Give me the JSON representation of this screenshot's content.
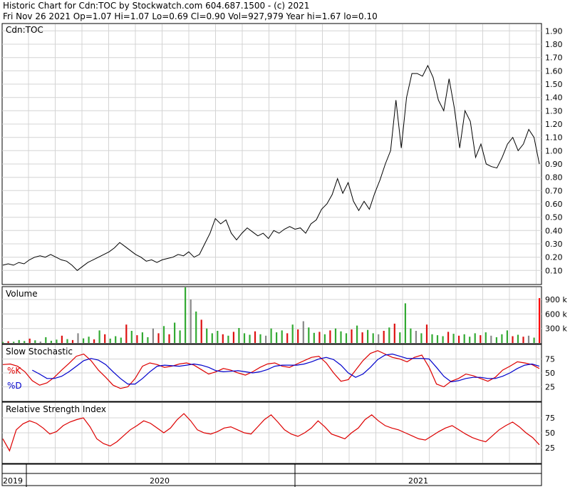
{
  "header": {
    "line1": "Historic Chart for Cdn:TOC by Stockwatch.com 604.687.1500 - (c) 2021",
    "line2": "Fri Nov 26 2021   Op=1.07  Hi=1.07  Lo=0.69  Cl=0.90  Vol=927,979  Year hi=1.67  lo=0.10"
  },
  "chart_data": [
    {
      "type": "line",
      "title": "Cdn:TOC",
      "ylim": [
        0.0,
        1.95
      ],
      "yticks": [
        "1.90",
        "1.80",
        "1.70",
        "1.60",
        "1.50",
        "1.40",
        "1.30",
        "1.20",
        "1.10",
        "1.00",
        "0.90",
        "0.80",
        "0.70",
        "0.60",
        "0.50",
        "0.40",
        "0.30",
        "0.20",
        "0.10"
      ],
      "x_labels": [
        "2019",
        "2020",
        "2021"
      ],
      "series": [
        {
          "values": [
            0.14,
            0.15,
            0.14,
            0.16,
            0.15,
            0.18,
            0.2,
            0.21,
            0.2,
            0.22,
            0.2,
            0.18,
            0.17,
            0.14,
            0.1,
            0.13,
            0.16,
            0.18,
            0.2,
            0.22,
            0.24,
            0.27,
            0.31,
            0.28,
            0.25,
            0.22,
            0.2,
            0.17,
            0.18,
            0.16,
            0.18,
            0.19,
            0.2,
            0.22,
            0.21,
            0.24,
            0.2,
            0.22,
            0.3,
            0.38,
            0.49,
            0.45,
            0.48,
            0.38,
            0.33,
            0.38,
            0.42,
            0.39,
            0.36,
            0.38,
            0.34,
            0.4,
            0.38,
            0.41,
            0.43,
            0.41,
            0.42,
            0.38,
            0.45,
            0.48,
            0.56,
            0.6,
            0.67,
            0.79,
            0.68,
            0.76,
            0.62,
            0.55,
            0.62,
            0.56,
            0.68,
            0.78,
            0.9,
            1.0,
            1.38,
            1.02,
            1.4,
            1.58,
            1.58,
            1.56,
            1.64,
            1.55,
            1.38,
            1.3,
            1.54,
            1.32,
            1.02,
            1.3,
            1.22,
            0.95,
            1.05,
            0.9,
            0.88,
            0.87,
            0.95,
            1.05,
            1.1,
            1.0,
            1.05,
            1.16,
            1.1,
            0.9
          ]
        }
      ]
    },
    {
      "type": "bar",
      "title": "Volume",
      "yticks": [
        "900 k",
        "600 k",
        "300 k"
      ],
      "ylim": [
        0,
        1150000
      ],
      "values": [
        20000,
        35000,
        25000,
        60000,
        40000,
        90000,
        55000,
        30000,
        120000,
        45000,
        70000,
        150000,
        80000,
        60000,
        200000,
        95000,
        130000,
        75000,
        260000,
        180000,
        90000,
        140000,
        110000,
        380000,
        250000,
        160000,
        220000,
        120000,
        300000,
        200000,
        350000,
        180000,
        420000,
        260000,
        1150000,
        900000,
        650000,
        480000,
        300000,
        200000,
        250000,
        180000,
        150000,
        230000,
        310000,
        200000,
        170000,
        240000,
        180000,
        150000,
        300000,
        220000,
        260000,
        200000,
        380000,
        280000,
        450000,
        320000,
        210000,
        230000,
        180000,
        260000,
        300000,
        240000,
        200000,
        280000,
        360000,
        220000,
        270000,
        200000,
        180000,
        250000,
        320000,
        400000,
        220000,
        820000,
        300000,
        250000,
        200000,
        380000,
        180000,
        160000,
        140000,
        230000,
        190000,
        150000,
        180000,
        130000,
        200000,
        160000,
        220000,
        150000,
        120000,
        180000,
        260000,
        140000,
        170000,
        130000,
        150000,
        110000,
        927979
      ],
      "colors": {
        "up": "#33aa33",
        "down": "#dd1111",
        "neutral": "#888888",
        "last": "#ff0000"
      }
    },
    {
      "type": "line",
      "title": "Slow Stochastic",
      "yticks": [
        "75",
        "50",
        "25"
      ],
      "ylim": [
        0,
        100
      ],
      "series": [
        {
          "name": "%K",
          "color": "#dd0000",
          "values": [
            65,
            66,
            62,
            52,
            36,
            28,
            32,
            42,
            55,
            67,
            80,
            84,
            72,
            55,
            42,
            28,
            22,
            25,
            40,
            62,
            68,
            65,
            60,
            62,
            66,
            68,
            64,
            56,
            48,
            52,
            58,
            55,
            50,
            46,
            52,
            60,
            66,
            68,
            62,
            60,
            66,
            72,
            78,
            80,
            68,
            50,
            35,
            38,
            55,
            72,
            85,
            90,
            84,
            78,
            75,
            70,
            78,
            82,
            60,
            30,
            25,
            35,
            40,
            48,
            45,
            40,
            35,
            42,
            55,
            62,
            70,
            68,
            65,
            58
          ]
        },
        {
          "name": "%D",
          "color": "#0000cc",
          "values": [
            null,
            null,
            null,
            null,
            55,
            48,
            40,
            40,
            44,
            52,
            62,
            72,
            76,
            73,
            65,
            52,
            40,
            30,
            30,
            40,
            52,
            62,
            64,
            63,
            62,
            64,
            66,
            64,
            60,
            54,
            52,
            53,
            54,
            52,
            50,
            52,
            56,
            62,
            64,
            64,
            64,
            66,
            70,
            75,
            78,
            74,
            64,
            50,
            42,
            48,
            60,
            74,
            82,
            84,
            80,
            76,
            76,
            76,
            75,
            60,
            44,
            34,
            36,
            40,
            42,
            42,
            40,
            40,
            44,
            50,
            58,
            64,
            66,
            62
          ]
        }
      ]
    },
    {
      "type": "line",
      "title": "Relative Strength Index",
      "yticks": [
        "75",
        "50",
        "25"
      ],
      "ylim": [
        0,
        100
      ],
      "series": [
        {
          "name": "RSI",
          "color": "#dd0000",
          "values": [
            40,
            20,
            55,
            65,
            70,
            66,
            58,
            48,
            52,
            62,
            68,
            72,
            75,
            60,
            40,
            32,
            28,
            35,
            45,
            55,
            62,
            70,
            66,
            58,
            50,
            58,
            72,
            82,
            70,
            55,
            50,
            48,
            52,
            58,
            60,
            55,
            50,
            48,
            60,
            72,
            80,
            68,
            55,
            48,
            44,
            50,
            58,
            70,
            60,
            48,
            44,
            40,
            50,
            58,
            72,
            80,
            70,
            62,
            58,
            55,
            50,
            45,
            40,
            38,
            45,
            52,
            58,
            62,
            55,
            48,
            42,
            38,
            35,
            45,
            55,
            62,
            68,
            60,
            50,
            42,
            30
          ]
        }
      ]
    }
  ]
}
